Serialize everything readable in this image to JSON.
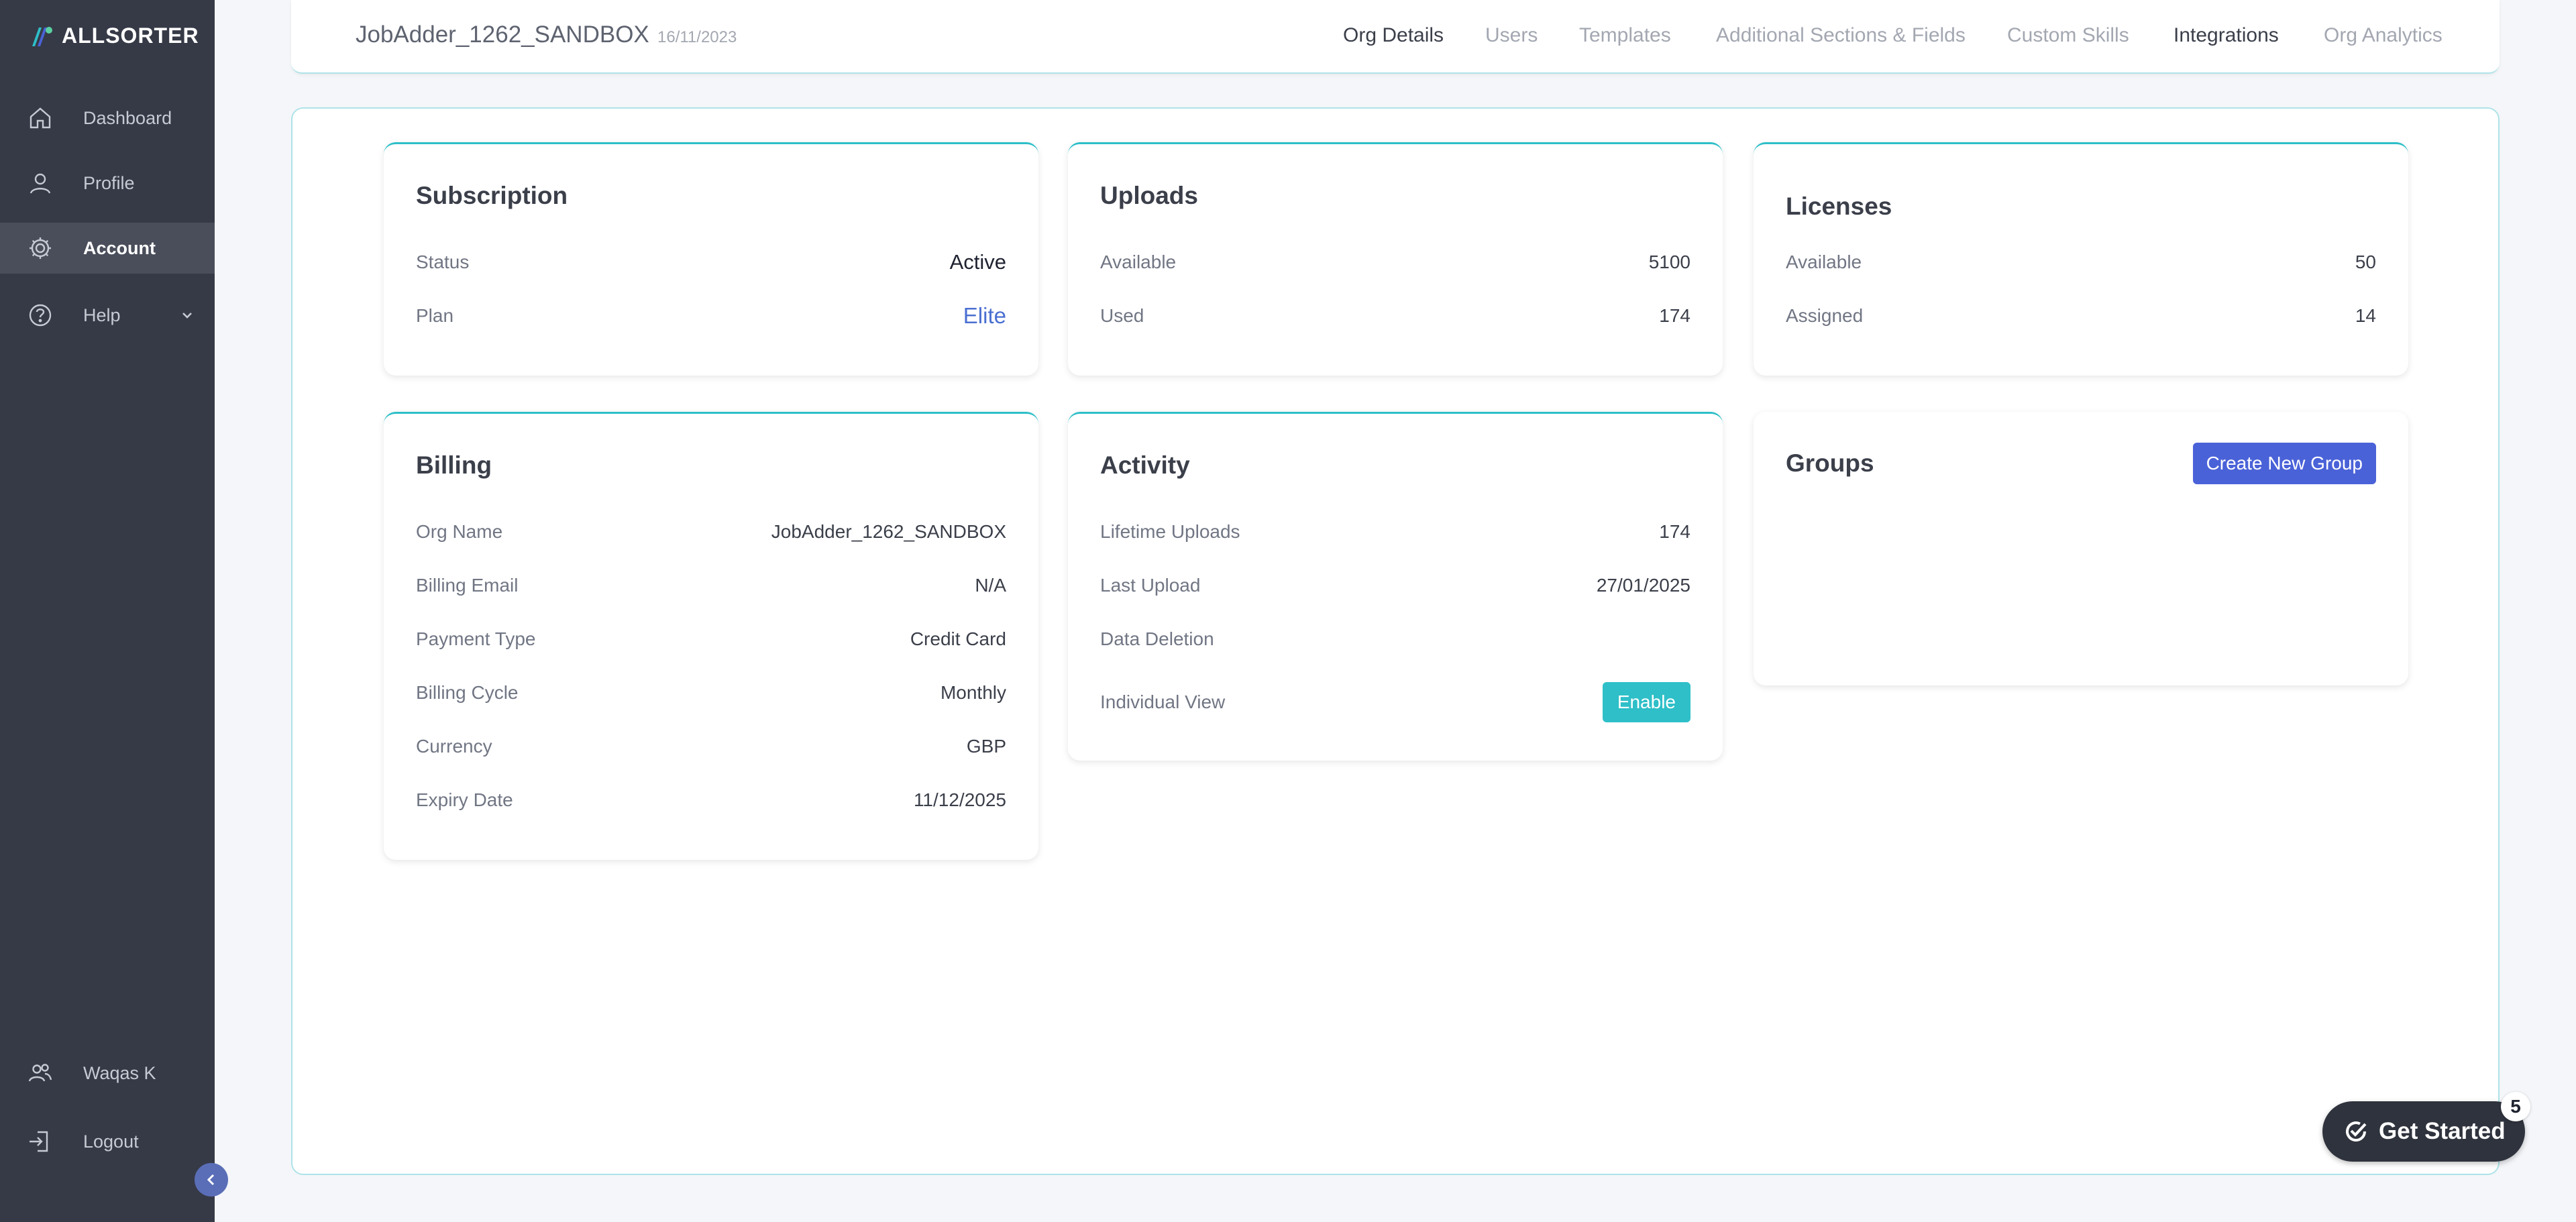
{
  "brand": {
    "name": "ALLSORTER"
  },
  "sidebar": {
    "items": [
      {
        "label": "Dashboard",
        "icon": "home-icon"
      },
      {
        "label": "Profile",
        "icon": "user-icon"
      },
      {
        "label": "Account",
        "icon": "gear-icon",
        "active": true
      },
      {
        "label": "Help",
        "icon": "help-circle-icon"
      }
    ],
    "user_label": "Waqas K",
    "logout_label": "Logout"
  },
  "header": {
    "org_name": "JobAdder_1262_SANDBOX",
    "org_date": "16/11/2023",
    "tabs": [
      {
        "label": "Org Details",
        "active": true
      },
      {
        "label": "Users"
      },
      {
        "label": "Templates"
      },
      {
        "label": "Additional Sections & Fields"
      },
      {
        "label": "Custom Skills"
      },
      {
        "label": "Integrations",
        "active": true
      },
      {
        "label": "Org Analytics"
      }
    ]
  },
  "subscription": {
    "title": "Subscription",
    "status_label": "Status",
    "status_value": "Active",
    "plan_label": "Plan",
    "plan_value": "Elite"
  },
  "uploads": {
    "title": "Uploads",
    "available_label": "Available",
    "available_value": "5100",
    "used_label": "Used",
    "used_value": "174"
  },
  "licenses": {
    "title": "Licenses",
    "available_label": "Available",
    "available_value": "50",
    "assigned_label": "Assigned",
    "assigned_value": "14"
  },
  "billing": {
    "title": "Billing",
    "rows": [
      {
        "label": "Org Name",
        "value": "JobAdder_1262_SANDBOX"
      },
      {
        "label": "Billing Email",
        "value": "N/A"
      },
      {
        "label": "Payment Type",
        "value": "Credit Card"
      },
      {
        "label": "Billing Cycle",
        "value": "Monthly"
      },
      {
        "label": "Currency",
        "value": "GBP"
      },
      {
        "label": "Expiry Date",
        "value": "11/12/2025"
      }
    ]
  },
  "activity": {
    "title": "Activity",
    "lifetime_label": "Lifetime Uploads",
    "lifetime_value": "174",
    "last_label": "Last Upload",
    "last_value": "27/01/2025",
    "deletion_label": "Data Deletion",
    "individual_label": "Individual View",
    "enable_button": "Enable"
  },
  "groups": {
    "title": "Groups",
    "create_button": "Create New Group"
  },
  "get_started": {
    "label": "Get Started",
    "badge": "5"
  },
  "colors": {
    "sidebar_bg": "#363a47",
    "accent_teal": "#2ebfc8",
    "primary_blue": "#4a62d8",
    "link_blue": "#4a6fd1"
  }
}
